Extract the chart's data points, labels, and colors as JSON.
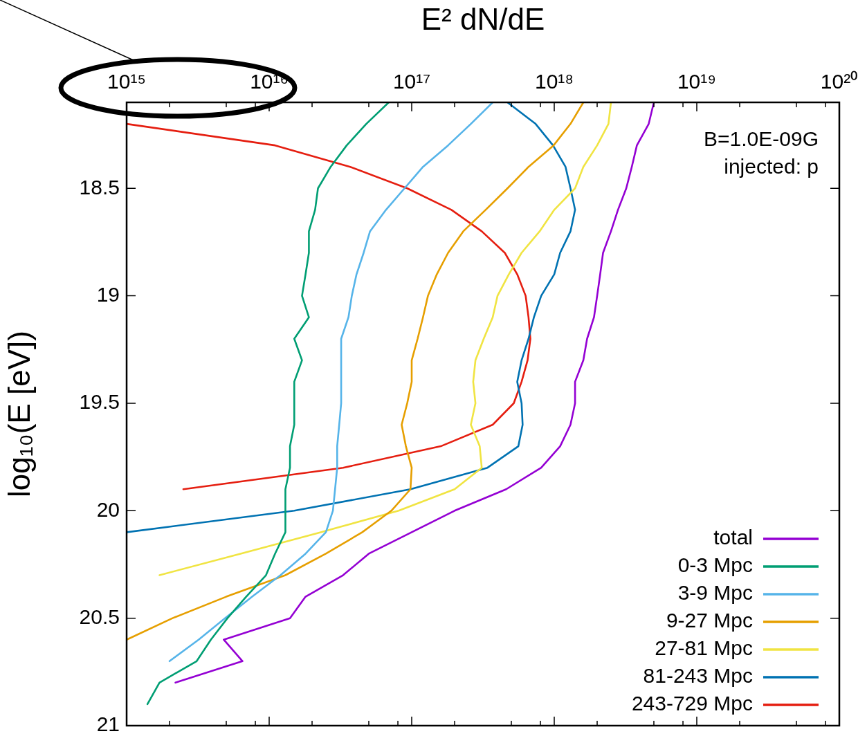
{
  "chart_data": {
    "type": "line",
    "xlabel": "E² dN/dE",
    "ylabel": "log₁₀(E [eV])",
    "log": "x",
    "legend": "bottom right",
    "annotations": [
      "B=1.0E-09G",
      "injected: p"
    ],
    "ylim": [
      21,
      18.1
    ],
    "yticks": [
      18.5,
      19,
      19.5,
      20,
      20.5,
      21
    ],
    "xlim": [
      1000000000000000.0,
      1e+20
    ],
    "xticks": [
      {
        "value": 1000000000000000.0,
        "label": "10¹⁵"
      },
      {
        "value": 2000000000000000.0,
        "label": null
      },
      {
        "value": 5000000000000000.0,
        "label": null
      },
      {
        "value": 8000000000000000.0,
        "label": null
      },
      {
        "value": 1e+16,
        "label": "10¹⁶"
      },
      {
        "value": 2e+16,
        "label": null
      },
      {
        "value": 5e+16,
        "label": null
      },
      {
        "value": 8e+16,
        "label": null
      },
      {
        "value": 1e+17,
        "label": "10¹⁷"
      },
      {
        "value": 2e+17,
        "label": null
      },
      {
        "value": 5e+17,
        "label": null
      },
      {
        "value": 8e+17,
        "label": null
      },
      {
        "value": 1e+18,
        "label": "10¹⁸"
      },
      {
        "value": 2e+18,
        "label": null
      },
      {
        "value": 5e+18,
        "label": null
      },
      {
        "value": 8e+18,
        "label": null
      },
      {
        "value": 1e+19,
        "label": "10¹⁹"
      },
      {
        "value": 2e+19,
        "label": null
      },
      {
        "value": 5e+19,
        "label": null
      },
      {
        "value": 8e+19,
        "label": null
      },
      {
        "value": 1e+20,
        "label": "10²⁰"
      }
    ],
    "series": [
      {
        "name": "total",
        "color": "#9400d3",
        "x": [
          5e+18,
          4.6e+18,
          3.8e+18,
          3.5e+18,
          3.2e+18,
          2.8e+18,
          2.5e+18,
          2.2e+18,
          2.1e+18,
          2e+18,
          1.9e+18,
          1.7e+18,
          1.6e+18,
          1.4e+18,
          1.4e+18,
          1.3e+18,
          1.1e+18,
          8.1e+17,
          4.6e+17,
          2e+17,
          1e+17,
          5e+16,
          3.3e+16,
          1.8e+16,
          1.4e+16,
          4800000000000000.0,
          6500000000000000.0,
          2200000000000000.0
        ],
        "values": [
          18.1,
          18.2,
          18.3,
          18.4,
          18.5,
          18.6,
          18.7,
          18.8,
          18.9,
          19.0,
          19.1,
          19.2,
          19.3,
          19.4,
          19.5,
          19.6,
          19.7,
          19.8,
          19.9,
          20.0,
          20.1,
          20.2,
          20.3,
          20.4,
          20.5,
          20.6,
          20.7,
          20.8
        ]
      },
      {
        "name": "0-3 Mpc",
        "color": "#009e73",
        "x": [
          6.9e+16,
          4.8e+16,
          3.5e+16,
          2.7e+16,
          2.2e+16,
          2.1e+16,
          1.9e+16,
          1.9e+16,
          1.8e+16,
          1.7e+16,
          1.9e+16,
          1.5e+16,
          1.7e+16,
          1.5e+16,
          1.5e+16,
          1.4e+16,
          1.4e+16,
          1.3e+16,
          1.3e+16,
          1.1e+16,
          9500000000000000.0,
          6900000000000000.0,
          5100000000000000.0,
          3900000000000000.0,
          3100000000000000.0,
          1700000000000000.0,
          1400000000000000.0
        ],
        "values": [
          18.1,
          18.2,
          18.3,
          18.4,
          18.5,
          18.6,
          18.7,
          18.8,
          18.9,
          19.0,
          19.1,
          19.2,
          19.3,
          19.4,
          19.6,
          19.7,
          19.8,
          19.9,
          20.1,
          20.2,
          20.3,
          20.4,
          20.5,
          20.6,
          20.7,
          20.8,
          20.9
        ]
      },
      {
        "name": "3-9 Mpc",
        "color": "#56b4e9",
        "x": [
          3.7e+17,
          2.6e+17,
          1.8e+17,
          1.2e+17,
          8.9e+16,
          6.6e+16,
          5.1e+16,
          4.6e+16,
          4.1e+16,
          3.8e+16,
          3.6e+16,
          3.2e+16,
          3.2e+16,
          3.1e+16,
          3e+16,
          3e+16,
          2.9e+16,
          2.8e+16,
          2.5e+16,
          1.8e+16,
          1.2e+16,
          7600000000000000.0,
          4900000000000000.0,
          3200000000000000.0,
          2000000000000000.0
        ],
        "values": [
          18.1,
          18.2,
          18.3,
          18.4,
          18.5,
          18.6,
          18.7,
          18.8,
          18.9,
          19.0,
          19.1,
          19.2,
          19.5,
          19.6,
          19.7,
          19.8,
          19.9,
          20.0,
          20.1,
          20.2,
          20.3,
          20.4,
          20.5,
          20.6,
          20.7
        ]
      },
      {
        "name": "9-27 Mpc",
        "color": "#e69f00",
        "x": [
          1.6e+18,
          1.3e+18,
          9.9e+17,
          6.6e+17,
          4.7e+17,
          3.3e+17,
          2.3e+17,
          1.8e+17,
          1.5e+17,
          1.3e+17,
          1.2e+17,
          1.1e+17,
          1e+17,
          1e+17,
          9.3e+16,
          8.5e+16,
          9.1e+16,
          1e+17,
          9.8e+16,
          7.2e+16,
          4.5e+16,
          2.5e+16,
          1.3e+16,
          5000000000000000.0,
          2100000000000000.0,
          1000000000000000.0
        ],
        "values": [
          18.1,
          18.2,
          18.3,
          18.4,
          18.5,
          18.6,
          18.7,
          18.8,
          18.9,
          19.0,
          19.1,
          19.2,
          19.3,
          19.4,
          19.5,
          19.6,
          19.7,
          19.8,
          19.9,
          20.0,
          20.1,
          20.2,
          20.3,
          20.4,
          20.5,
          20.6
        ]
      },
      {
        "name": "27-81 Mpc",
        "color": "#f0e442",
        "x": [
          2.5e+18,
          2.4e+18,
          2e+18,
          1.6e+18,
          1.4e+18,
          1e+18,
          7.9e+17,
          5.9e+17,
          4.8e+17,
          4e+17,
          3.7e+17,
          3.2e+17,
          2.8e+17,
          2.7e+17,
          2.8e+17,
          2.6e+17,
          3e+17,
          3.1e+17,
          2e+17,
          8.1e+16,
          2.3e+16,
          6300000000000000.0,
          1700000000000000.0
        ],
        "values": [
          18.1,
          18.2,
          18.3,
          18.4,
          18.5,
          18.6,
          18.7,
          18.8,
          18.9,
          19.0,
          19.1,
          19.2,
          19.3,
          19.4,
          19.5,
          19.6,
          19.7,
          19.8,
          19.9,
          20.0,
          20.1,
          20.2,
          20.3
        ]
      },
      {
        "name": "81-243 Mpc",
        "color": "#0072b2",
        "x": [
          4.7e+17,
          7.4e+17,
          9.8e+17,
          1.2e+18,
          1.3e+18,
          1.4e+18,
          1.3e+18,
          1.1e+18,
          1e+18,
          8.1e+17,
          7.2e+17,
          6.6e+17,
          5.9e+17,
          5.5e+17,
          5.9e+17,
          6e+17,
          5.6e+17,
          3.4e+17,
          9.8e+16,
          1.5e+16,
          1000000000000000.0
        ],
        "values": [
          18.1,
          18.2,
          18.3,
          18.4,
          18.5,
          18.6,
          18.7,
          18.8,
          18.9,
          19.0,
          19.1,
          19.2,
          19.3,
          19.4,
          19.5,
          19.6,
          19.7,
          19.8,
          19.9,
          20.0,
          20.1
        ]
      },
      {
        "name": "243-729 Mpc",
        "color": "#e51e10",
        "x": [
          1000000000000000.0,
          1.1e+16,
          3.7e+16,
          9.3e+16,
          1.9e+17,
          3.1e+17,
          4.5e+17,
          5.5e+17,
          6.3e+17,
          6.6e+17,
          6.8e+17,
          6.5e+17,
          5.9e+17,
          5.2e+17,
          3.7e+17,
          1.6e+17,
          3.3e+16,
          2500000000000000.0
        ],
        "values": [
          18.2,
          18.3,
          18.4,
          18.5,
          18.6,
          18.7,
          18.8,
          18.9,
          19.0,
          19.1,
          19.2,
          19.3,
          19.4,
          19.5,
          19.6,
          19.7,
          19.8,
          19.9
        ]
      }
    ]
  }
}
